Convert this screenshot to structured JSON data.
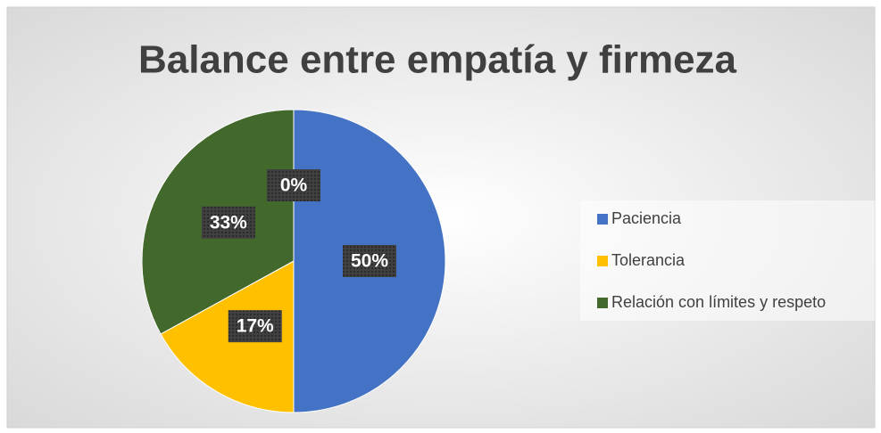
{
  "chart_data": {
    "type": "pie",
    "title": "Balance entre empatía y firmeza",
    "categories": [
      "Paciencia",
      "Tolerancia",
      "Relación con límites y respeto",
      null
    ],
    "values": [
      50,
      17,
      33,
      0
    ],
    "value_labels": [
      "50%",
      "17%",
      "33%",
      "0%"
    ],
    "colors": [
      "#4472c4",
      "#ffc000",
      "#43682b",
      "#a5a5a5"
    ],
    "legend": "right"
  }
}
